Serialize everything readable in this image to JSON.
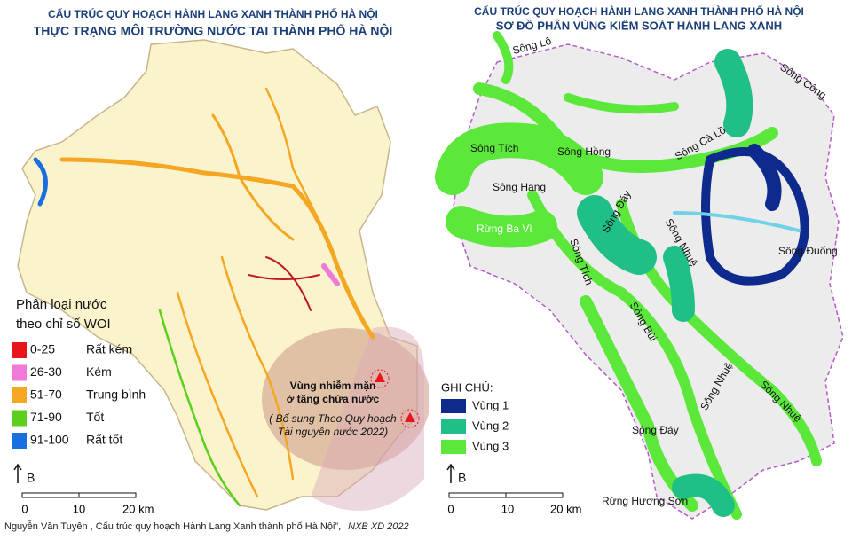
{
  "left_panel": {
    "title": "CẤU TRÚC QUY HOẠCH HÀNH LANG XANH THÀNH PHỐ HÀ NỘI",
    "subtitle": "THỰC TRẠNG MÔI TRƯỜNG NƯỚC TAI THÀNH PHỐ HÀ NỘI",
    "legend": {
      "title": [
        "Phân loại nước",
        "theo chỉ số WOI"
      ],
      "items": [
        {
          "range": "0-25",
          "label": "Rất kém",
          "color": "#e8141c"
        },
        {
          "range": "26-30",
          "label": "Kém",
          "color": "#f07ad8"
        },
        {
          "range": "51-70",
          "label": "Trung bình",
          "color": "#f5a623"
        },
        {
          "range": "71-90",
          "label": "Tốt",
          "color": "#5ccf1e"
        },
        {
          "range": "91-100",
          "label": "Rất tốt",
          "color": "#1a6fe0"
        }
      ]
    },
    "north": "B",
    "scale": [
      "0",
      "10",
      "20 km"
    ],
    "annotation": [
      "Vùng nhiễm mặn",
      "ở tầng chứa nước",
      "( Bổ sung Theo Quy hoạch",
      "Tài nguyên nước 2022)"
    ],
    "credit": "Nguyễn Văn Tuyên , Cấu trúc quy hoạch Hành Lang Xanh thành phố Hà Nội”,",
    "credit_publisher": "NXB XD 2022"
  },
  "right_panel": {
    "title": "CẤU TRÚC QUY HOẠCH HÀNH LANG XANH THÀNH PHỐ HÀ NỘI",
    "subtitle": "SƠ ĐỒ PHÂN VÙNG KIỂM SOÁT HÀNH LANG XANH",
    "labels": [
      "Sông Lô",
      "Sông Công",
      "Sông Tích",
      "Sông Hồng",
      "Sông Cà Lồ",
      "Sông Hang",
      "Sông Đáy",
      "Sông Nhuệ",
      "Rừng Ba Vì",
      "Sông Tích",
      "Sông Đuống",
      "Sông Bùi",
      "Sông Nhuệ",
      "Sông Nhuệ",
      "Sông Đáy",
      "Rừng Hương Sơn"
    ],
    "legend": {
      "title": "GHI CHÚ:",
      "items": [
        {
          "label": "Vùng 1",
          "color": "#0d2a8c"
        },
        {
          "label": "Vùng 2",
          "color": "#1fbf86"
        },
        {
          "label": "Vùng 3",
          "color": "#5be83a"
        }
      ]
    },
    "north": "B",
    "scale": [
      "0",
      "10",
      "20 km"
    ]
  }
}
